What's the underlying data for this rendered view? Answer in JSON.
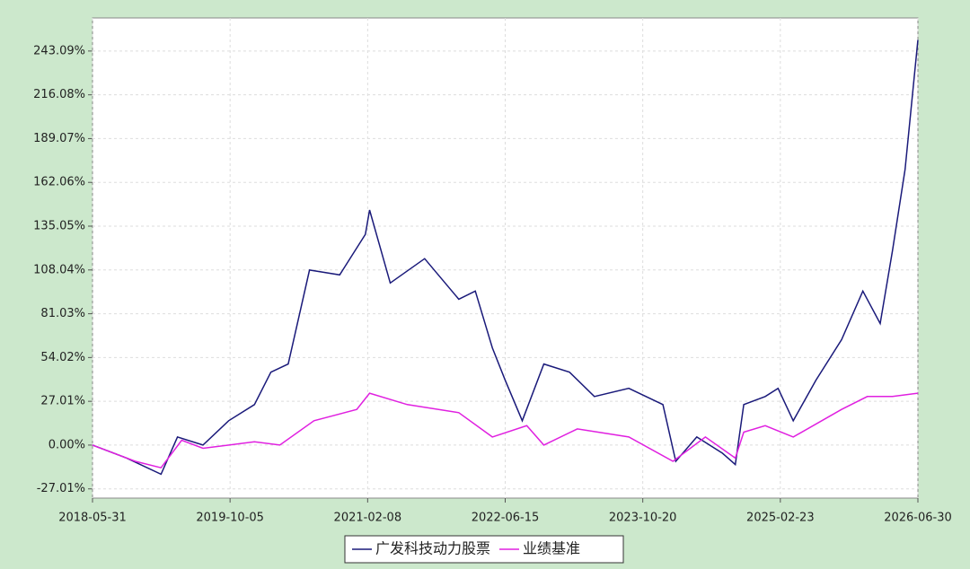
{
  "chart_data": {
    "type": "line",
    "xlim": [
      "2018-05-31",
      "2026-06-30"
    ],
    "xticks": [
      "2018-05-31",
      "2019-10-05",
      "2021-02-08",
      "2022-06-15",
      "2023-10-20",
      "2025-02-23",
      "2026-06-30"
    ],
    "ylim": [
      -32.7,
      263.5
    ],
    "yticks": [
      {
        "value": -27.01,
        "label": "-27.01%"
      },
      {
        "value": 0,
        "label": "0.00%"
      },
      {
        "value": 27.01,
        "label": "27.01%"
      },
      {
        "value": 54.02,
        "label": "54.02%"
      },
      {
        "value": 81.03,
        "label": "81.03%"
      },
      {
        "value": 108.04,
        "label": "108.04%"
      },
      {
        "value": 135.05,
        "label": "135.05%"
      },
      {
        "value": 162.06,
        "label": "162.06%"
      },
      {
        "value": 189.07,
        "label": "189.07%"
      },
      {
        "value": 216.08,
        "label": "216.08%"
      },
      {
        "value": 243.09,
        "label": "243.09%"
      }
    ],
    "grid": true,
    "series": [
      {
        "name": "广发科技动力股票",
        "color": "#1a1a7a",
        "x": [
          "2018-05-31",
          "2018-09-30",
          "2019-01-31",
          "2019-03-31",
          "2019-06-30",
          "2019-09-30",
          "2019-12-31",
          "2020-02-28",
          "2020-04-30",
          "2020-07-15",
          "2020-10-31",
          "2021-01-31",
          "2021-02-15",
          "2021-04-30",
          "2021-08-31",
          "2021-12-31",
          "2022-02-28",
          "2022-04-30",
          "2022-06-15",
          "2022-08-15",
          "2022-10-31",
          "2023-01-31",
          "2023-04-30",
          "2023-08-31",
          "2023-12-31",
          "2024-02-15",
          "2024-04-30",
          "2024-07-31",
          "2024-09-15",
          "2024-10-15",
          "2024-12-31",
          "2025-02-15",
          "2025-04-10",
          "2025-06-30",
          "2025-09-30",
          "2025-12-15",
          "2026-02-15",
          "2026-03-31",
          "2026-05-15",
          "2026-06-30"
        ],
        "values": [
          0,
          -8,
          -18,
          5,
          0,
          15,
          25,
          45,
          50,
          108,
          105,
          130,
          145,
          100,
          115,
          90,
          95,
          60,
          40,
          15,
          50,
          45,
          30,
          35,
          25,
          -10,
          5,
          -5,
          -12,
          25,
          30,
          35,
          15,
          40,
          65,
          95,
          75,
          120,
          170,
          250
        ]
      },
      {
        "name": "业绩基准",
        "color": "#e020e0",
        "x": [
          "2018-05-31",
          "2018-10-31",
          "2019-01-31",
          "2019-04-15",
          "2019-06-30",
          "2019-12-31",
          "2020-03-31",
          "2020-07-31",
          "2020-12-31",
          "2021-02-15",
          "2021-06-30",
          "2021-12-31",
          "2022-04-30",
          "2022-08-31",
          "2022-10-31",
          "2023-02-28",
          "2023-08-31",
          "2024-02-05",
          "2024-05-31",
          "2024-09-15",
          "2024-10-15",
          "2024-12-31",
          "2025-04-10",
          "2025-09-30",
          "2025-12-31",
          "2026-03-31",
          "2026-06-30"
        ],
        "values": [
          0,
          -10,
          -14,
          3,
          -2,
          2,
          0,
          15,
          22,
          32,
          25,
          20,
          5,
          12,
          0,
          10,
          5,
          -10,
          5,
          -8,
          8,
          12,
          5,
          22,
          30,
          30,
          32
        ]
      }
    ]
  }
}
